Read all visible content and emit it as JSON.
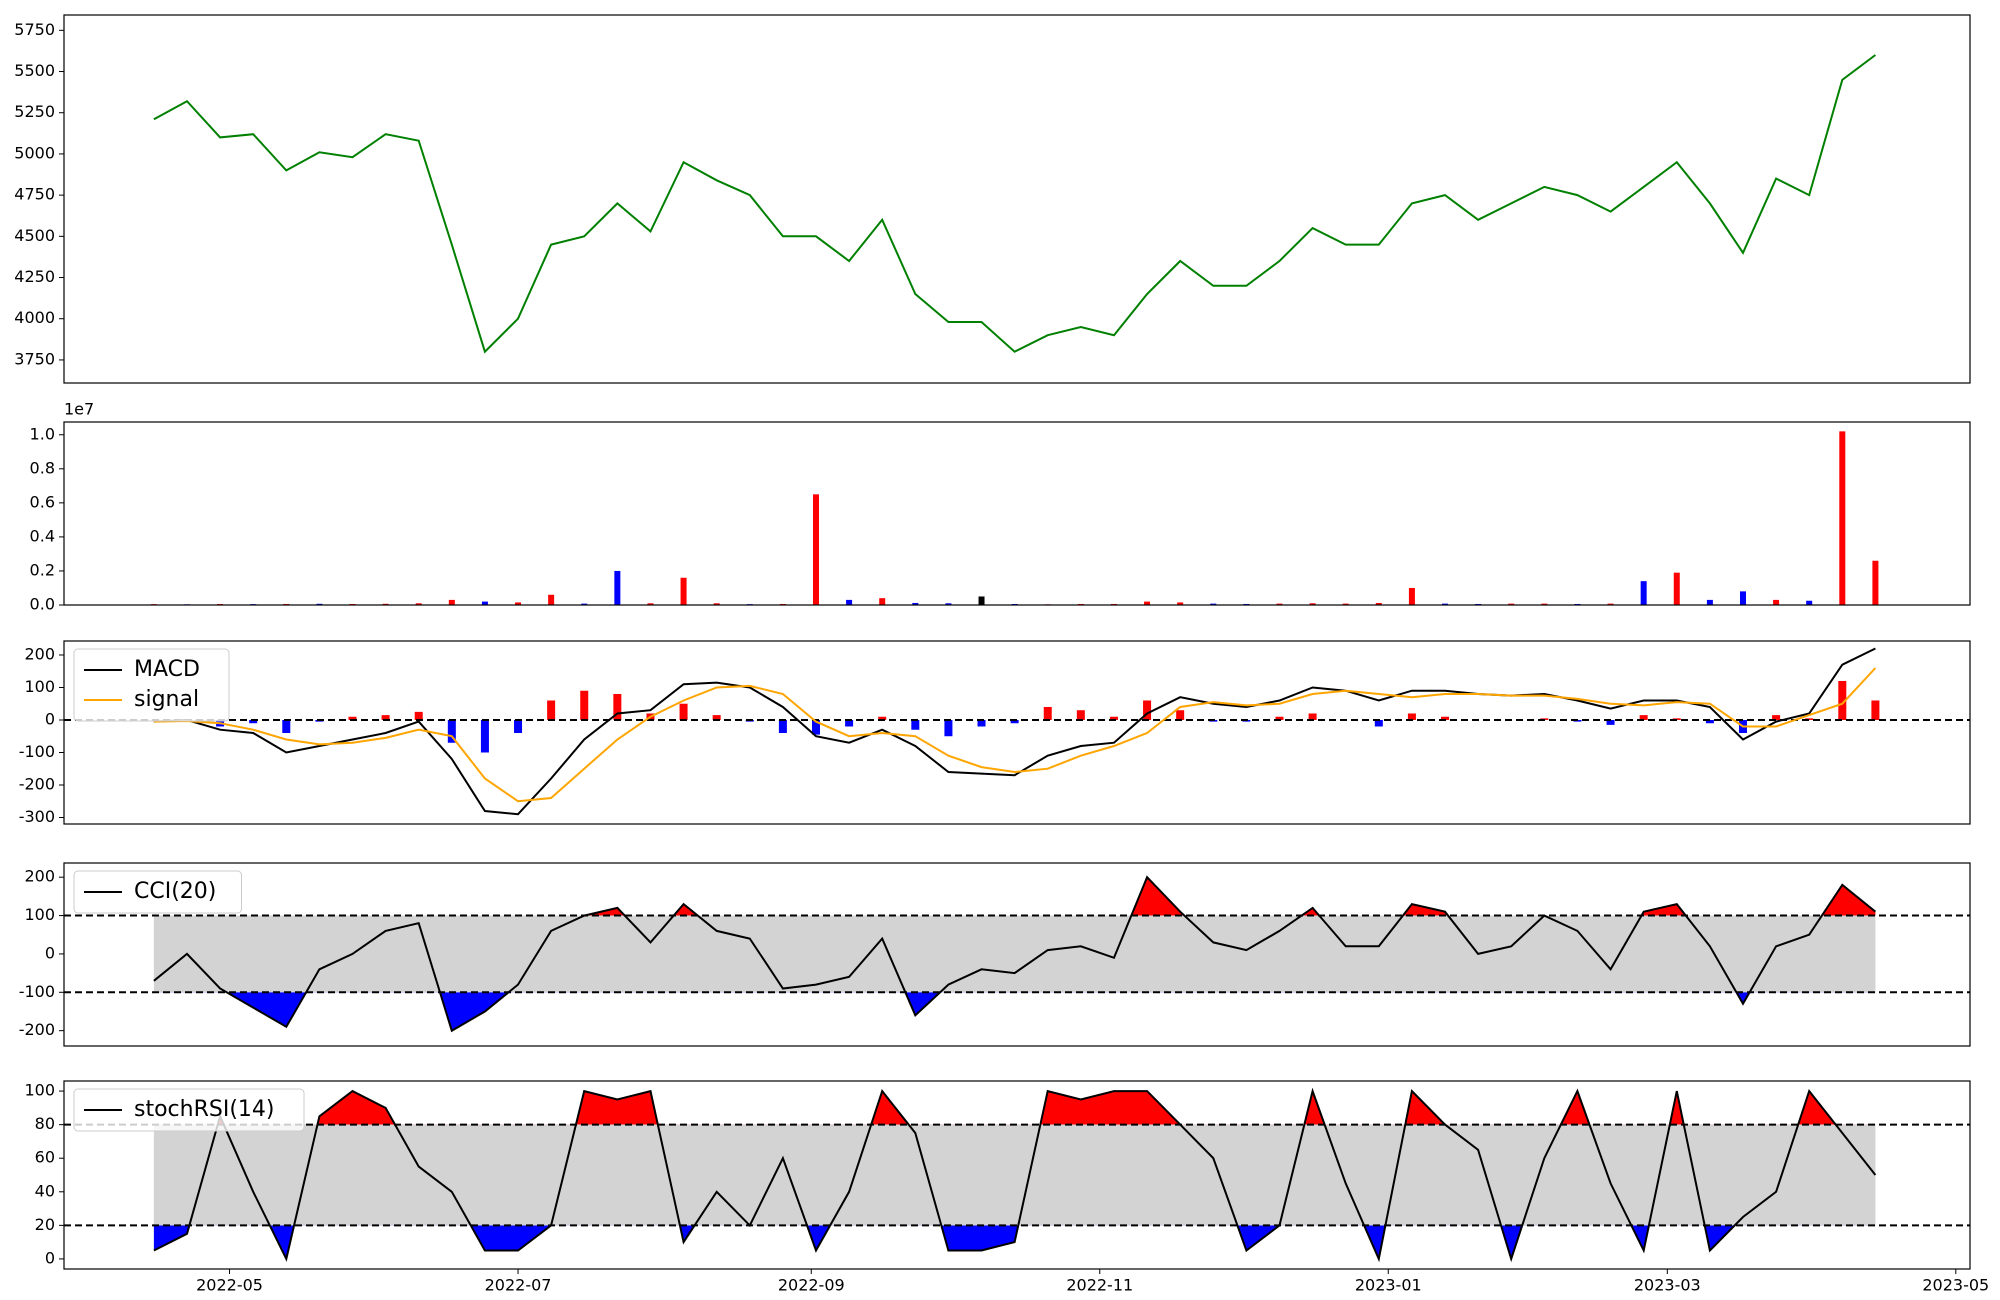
{
  "chart_data": [
    {
      "type": "line",
      "xlim": [
        "2022-03-27",
        "2023-05-04"
      ],
      "ylim": [
        3610,
        5843
      ],
      "yticks": [
        3750,
        4000,
        4250,
        4500,
        4750,
        5000,
        5250,
        5500,
        5750
      ],
      "x": [
        "2022-04-15",
        "2022-04-22",
        "2022-04-29",
        "2022-05-06",
        "2022-05-13",
        "2022-05-20",
        "2022-05-27",
        "2022-06-03",
        "2022-06-10",
        "2022-06-17",
        "2022-06-24",
        "2022-07-01",
        "2022-07-08",
        "2022-07-15",
        "2022-07-22",
        "2022-07-29",
        "2022-08-05",
        "2022-08-12",
        "2022-08-19",
        "2022-08-26",
        "2022-09-02",
        "2022-09-09",
        "2022-09-16",
        "2022-09-23",
        "2022-09-30",
        "2022-10-07",
        "2022-10-14",
        "2022-10-21",
        "2022-10-28",
        "2022-11-04",
        "2022-11-11",
        "2022-11-18",
        "2022-11-25",
        "2022-12-02",
        "2022-12-09",
        "2022-12-16",
        "2022-12-23",
        "2022-12-30",
        "2023-01-06",
        "2023-01-13",
        "2023-01-20",
        "2023-01-27",
        "2023-02-03",
        "2023-02-10",
        "2023-02-17",
        "2023-02-24",
        "2023-03-03",
        "2023-03-10",
        "2023-03-17",
        "2023-03-24",
        "2023-03-31",
        "2023-04-07",
        "2023-04-14"
      ],
      "series": [
        {
          "color": "#008000",
          "values": [
            5210,
            5320,
            5100,
            5120,
            4900,
            5010,
            4980,
            5120,
            5080,
            4450,
            3800,
            4000,
            4450,
            4500,
            4700,
            4530,
            4950,
            4840,
            4750,
            4500,
            4500,
            4350,
            4600,
            4150,
            3980,
            3980,
            3800,
            3900,
            3950,
            3900,
            4150,
            4350,
            4200,
            4200,
            4350,
            4550,
            4450,
            4450,
            4700,
            4750,
            4600,
            4700,
            4800,
            4750,
            4650,
            4800,
            4950,
            4700,
            4400,
            4850,
            4750,
            5450,
            5600
          ]
        }
      ]
    },
    {
      "type": "bar",
      "xlim": [
        "2022-03-27",
        "2023-05-04"
      ],
      "ylim": [
        0,
        10750000
      ],
      "offset_label": "1e7",
      "yticks": [
        {
          "value": 0,
          "label": "0.0"
        },
        {
          "value": 2000000,
          "label": "0.2"
        },
        {
          "value": 4000000,
          "label": "0.4"
        },
        {
          "value": 6000000,
          "label": "0.6"
        },
        {
          "value": 8000000,
          "label": "0.8"
        },
        {
          "value": 10000000,
          "label": "1.0"
        }
      ],
      "x": [
        "2022-04-15",
        "2022-04-22",
        "2022-04-29",
        "2022-05-06",
        "2022-05-13",
        "2022-05-20",
        "2022-05-27",
        "2022-06-03",
        "2022-06-10",
        "2022-06-17",
        "2022-06-24",
        "2022-07-01",
        "2022-07-08",
        "2022-07-15",
        "2022-07-22",
        "2022-07-29",
        "2022-08-05",
        "2022-08-12",
        "2022-08-19",
        "2022-08-26",
        "2022-09-02",
        "2022-09-09",
        "2022-09-16",
        "2022-09-23",
        "2022-09-30",
        "2022-10-07",
        "2022-10-14",
        "2022-10-21",
        "2022-10-28",
        "2022-11-04",
        "2022-11-11",
        "2022-11-18",
        "2022-11-25",
        "2022-12-02",
        "2022-12-09",
        "2022-12-16",
        "2022-12-23",
        "2022-12-30",
        "2023-01-06",
        "2023-01-13",
        "2023-01-20",
        "2023-01-27",
        "2023-02-03",
        "2023-02-10",
        "2023-02-17",
        "2023-02-24",
        "2023-03-03",
        "2023-03-10",
        "2023-03-17",
        "2023-03-24",
        "2023-03-31",
        "2023-04-07",
        "2023-04-14"
      ],
      "values": [
        50000,
        40000,
        60000,
        50000,
        60000,
        70000,
        60000,
        70000,
        100000,
        300000,
        200000,
        150000,
        600000,
        80000,
        2000000,
        100000,
        1600000,
        100000,
        50000,
        60000,
        6500000,
        300000,
        400000,
        120000,
        100000,
        500000,
        60000,
        40000,
        60000,
        60000,
        200000,
        150000,
        80000,
        60000,
        80000,
        100000,
        80000,
        120000,
        1000000,
        80000,
        60000,
        80000,
        80000,
        60000,
        80000,
        1400000,
        1900000,
        300000,
        800000,
        300000,
        250000,
        10200000,
        2600000
      ],
      "colors": [
        "red",
        "blue",
        "red",
        "blue",
        "red",
        "blue",
        "red",
        "red",
        "red",
        "red",
        "blue",
        "red",
        "red",
        "blue",
        "blue",
        "red",
        "red",
        "red",
        "blue",
        "red",
        "red",
        "blue",
        "red",
        "blue",
        "blue",
        "black",
        "blue",
        "red",
        "red",
        "red",
        "red",
        "red",
        "blue",
        "blue",
        "red",
        "red",
        "red",
        "red",
        "red",
        "blue",
        "blue",
        "red",
        "red",
        "blue",
        "red",
        "blue",
        "red",
        "blue",
        "blue",
        "red",
        "blue",
        "red",
        "red"
      ]
    },
    {
      "type": "macd",
      "xlim": [
        "2022-03-27",
        "2023-05-04"
      ],
      "ylim": [
        -320,
        243
      ],
      "yticks": [
        -300,
        -200,
        -100,
        0,
        100,
        200
      ],
      "hlines": [
        0
      ],
      "legend": "upper left",
      "up_color": "red",
      "down_color": "blue",
      "x": [
        "2022-04-15",
        "2022-04-22",
        "2022-04-29",
        "2022-05-06",
        "2022-05-13",
        "2022-05-20",
        "2022-05-27",
        "2022-06-03",
        "2022-06-10",
        "2022-06-17",
        "2022-06-24",
        "2022-07-01",
        "2022-07-08",
        "2022-07-15",
        "2022-07-22",
        "2022-07-29",
        "2022-08-05",
        "2022-08-12",
        "2022-08-19",
        "2022-08-26",
        "2022-09-02",
        "2022-09-09",
        "2022-09-16",
        "2022-09-23",
        "2022-09-30",
        "2022-10-07",
        "2022-10-14",
        "2022-10-21",
        "2022-10-28",
        "2022-11-04",
        "2022-11-11",
        "2022-11-18",
        "2022-11-25",
        "2022-12-02",
        "2022-12-09",
        "2022-12-16",
        "2022-12-23",
        "2022-12-30",
        "2023-01-06",
        "2023-01-13",
        "2023-01-20",
        "2023-01-27",
        "2023-02-03",
        "2023-02-10",
        "2023-02-17",
        "2023-02-24",
        "2023-03-03",
        "2023-03-10",
        "2023-03-17",
        "2023-03-24",
        "2023-03-31",
        "2023-04-07",
        "2023-04-14"
      ],
      "series": [
        {
          "name": "MACD",
          "color": "black",
          "values": [
            -5,
            0,
            -30,
            -40,
            -100,
            -80,
            -60,
            -40,
            -5,
            -120,
            -280,
            -290,
            -180,
            -60,
            20,
            30,
            110,
            115,
            100,
            40,
            -50,
            -70,
            -30,
            -80,
            -160,
            -165,
            -170,
            -110,
            -80,
            -70,
            20,
            70,
            50,
            40,
            60,
            100,
            90,
            60,
            90,
            90,
            80,
            75,
            80,
            60,
            35,
            60,
            60,
            40,
            -60,
            -5,
            20,
            170,
            220
          ]
        },
        {
          "name": "signal",
          "color": "orange",
          "values": [
            -5,
            -3,
            -10,
            -30,
            -60,
            -75,
            -70,
            -55,
            -30,
            -50,
            -180,
            -250,
            -240,
            -150,
            -60,
            10,
            60,
            100,
            105,
            80,
            -5,
            -50,
            -40,
            -50,
            -110,
            -145,
            -160,
            -150,
            -110,
            -80,
            -40,
            40,
            55,
            45,
            50,
            80,
            90,
            80,
            70,
            80,
            80,
            75,
            75,
            65,
            50,
            45,
            55,
            50,
            -20,
            -20,
            15,
            50,
            160
          ]
        }
      ],
      "histogram": [
        0,
        3,
        -20,
        -10,
        -40,
        -5,
        10,
        15,
        25,
        -70,
        -100,
        -40,
        60,
        90,
        80,
        20,
        50,
        15,
        -5,
        -40,
        -45,
        -20,
        10,
        -30,
        -50,
        -20,
        -10,
        40,
        30,
        10,
        60,
        30,
        -5,
        -5,
        10,
        20,
        0,
        -20,
        20,
        10,
        0,
        0,
        5,
        -5,
        -15,
        15,
        5,
        -10,
        -40,
        15,
        5,
        120,
        60
      ]
    },
    {
      "type": "oscillator",
      "xlim": [
        "2022-03-27",
        "2023-05-04"
      ],
      "ylim": [
        -240,
        237
      ],
      "yticks": [
        -200,
        -100,
        0,
        100,
        200
      ],
      "hlines": [
        100,
        -100
      ],
      "legend": "upper left",
      "band_color": "lightgray",
      "upper_color": "red",
      "lower_color": "blue",
      "x": [
        "2022-04-15",
        "2022-04-22",
        "2022-04-29",
        "2022-05-06",
        "2022-05-13",
        "2022-05-20",
        "2022-05-27",
        "2022-06-03",
        "2022-06-10",
        "2022-06-17",
        "2022-06-24",
        "2022-07-01",
        "2022-07-08",
        "2022-07-15",
        "2022-07-22",
        "2022-07-29",
        "2022-08-05",
        "2022-08-12",
        "2022-08-19",
        "2022-08-26",
        "2022-09-02",
        "2022-09-09",
        "2022-09-16",
        "2022-09-23",
        "2022-09-30",
        "2022-10-07",
        "2022-10-14",
        "2022-10-21",
        "2022-10-28",
        "2022-11-04",
        "2022-11-11",
        "2022-11-18",
        "2022-11-25",
        "2022-12-02",
        "2022-12-09",
        "2022-12-16",
        "2022-12-23",
        "2022-12-30",
        "2023-01-06",
        "2023-01-13",
        "2023-01-20",
        "2023-01-27",
        "2023-02-03",
        "2023-02-10",
        "2023-02-17",
        "2023-02-24",
        "2023-03-03",
        "2023-03-10",
        "2023-03-17",
        "2023-03-24",
        "2023-03-31",
        "2023-04-07",
        "2023-04-14"
      ],
      "series": [
        {
          "name": "CCI(20)",
          "color": "black",
          "values": [
            -70,
            0,
            -90,
            -140,
            -190,
            -40,
            0,
            60,
            80,
            -200,
            -150,
            -80,
            60,
            100,
            120,
            30,
            130,
            60,
            40,
            -90,
            -80,
            -60,
            40,
            -160,
            -80,
            -40,
            -50,
            10,
            20,
            -10,
            200,
            110,
            30,
            10,
            60,
            120,
            20,
            20,
            130,
            110,
            0,
            20,
            100,
            60,
            -40,
            110,
            130,
            20,
            -130,
            20,
            50,
            180,
            110
          ]
        }
      ]
    },
    {
      "type": "oscillator",
      "xlim": [
        "2022-03-27",
        "2023-05-04"
      ],
      "ylim": [
        -6,
        106
      ],
      "yticks": [
        0,
        20,
        40,
        60,
        80,
        100
      ],
      "hlines": [
        80,
        20
      ],
      "legend": "upper left",
      "band_color": "lightgray",
      "upper_color": "red",
      "lower_color": "blue",
      "xticks": [
        {
          "value": "2022-05-01",
          "label": "2022-05"
        },
        {
          "value": "2022-07-01",
          "label": "2022-07"
        },
        {
          "value": "2022-09-01",
          "label": "2022-09"
        },
        {
          "value": "2022-11-01",
          "label": "2022-11"
        },
        {
          "value": "2023-01-01",
          "label": "2023-01"
        },
        {
          "value": "2023-03-01",
          "label": "2023-03"
        },
        {
          "value": "2023-05-01",
          "label": "2023-05"
        }
      ],
      "x": [
        "2022-04-15",
        "2022-04-22",
        "2022-04-29",
        "2022-05-06",
        "2022-05-13",
        "2022-05-20",
        "2022-05-27",
        "2022-06-03",
        "2022-06-10",
        "2022-06-17",
        "2022-06-24",
        "2022-07-01",
        "2022-07-08",
        "2022-07-15",
        "2022-07-22",
        "2022-07-29",
        "2022-08-05",
        "2022-08-12",
        "2022-08-19",
        "2022-08-26",
        "2022-09-02",
        "2022-09-09",
        "2022-09-16",
        "2022-09-23",
        "2022-09-30",
        "2022-10-07",
        "2022-10-14",
        "2022-10-21",
        "2022-10-28",
        "2022-11-04",
        "2022-11-11",
        "2022-11-18",
        "2022-11-25",
        "2022-12-02",
        "2022-12-09",
        "2022-12-16",
        "2022-12-23",
        "2022-12-30",
        "2023-01-06",
        "2023-01-13",
        "2023-01-20",
        "2023-01-27",
        "2023-02-03",
        "2023-02-10",
        "2023-02-17",
        "2023-02-24",
        "2023-03-03",
        "2023-03-10",
        "2023-03-17",
        "2023-03-24",
        "2023-03-31",
        "2023-04-07",
        "2023-04-14"
      ],
      "series": [
        {
          "name": "stochRSI(14)",
          "color": "black",
          "values": [
            5,
            15,
            85,
            40,
            0,
            85,
            100,
            90,
            55,
            40,
            5,
            5,
            20,
            100,
            95,
            100,
            10,
            40,
            20,
            60,
            5,
            40,
            100,
            75,
            5,
            5,
            10,
            100,
            95,
            100,
            100,
            80,
            60,
            5,
            20,
            100,
            45,
            0,
            100,
            80,
            65,
            0,
            60,
            100,
            45,
            5,
            100,
            5,
            25,
            40,
            100,
            75,
            50
          ]
        }
      ]
    }
  ]
}
